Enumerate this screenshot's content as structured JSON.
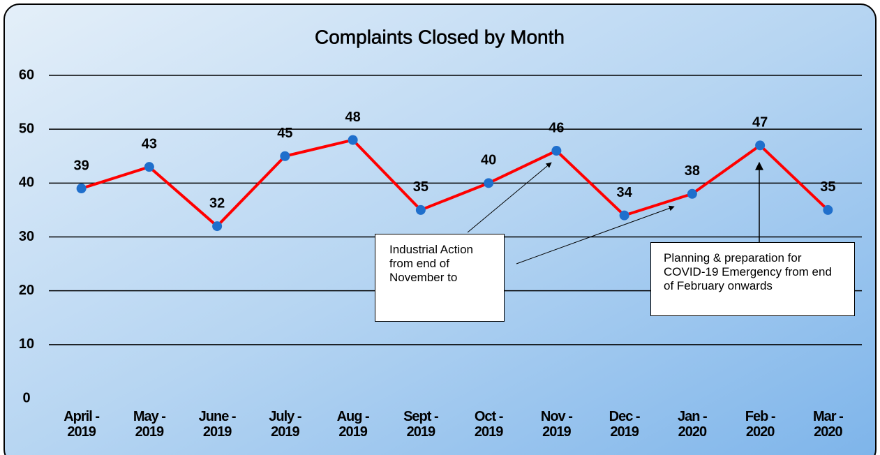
{
  "chart_data": {
    "type": "line",
    "title": "Complaints Closed by Month",
    "categories": [
      "April - 2019",
      "May - 2019",
      "June - 2019",
      "July - 2019",
      "Aug - 2019",
      "Sept - 2019",
      "Oct - 2019",
      "Nov - 2019",
      "Dec - 2019",
      "Jan - 2020",
      "Feb - 2020",
      "Mar - 2020"
    ],
    "series": [
      {
        "name": "Complaints Closed",
        "color": "#ff0000",
        "marker_color": "#1f6fcc",
        "values": [
          39,
          43,
          32,
          45,
          48,
          35,
          40,
          46,
          34,
          38,
          47,
          35
        ]
      }
    ],
    "ylim": [
      0,
      60
    ],
    "yticks": [
      0,
      10,
      20,
      30,
      40,
      50,
      60
    ],
    "grid": true,
    "annotations": [
      {
        "text": "Industrial Action from end of November to"
      },
      {
        "text": "Planning & preparation for COVID-19 Emergency from end of February onwards"
      }
    ]
  }
}
